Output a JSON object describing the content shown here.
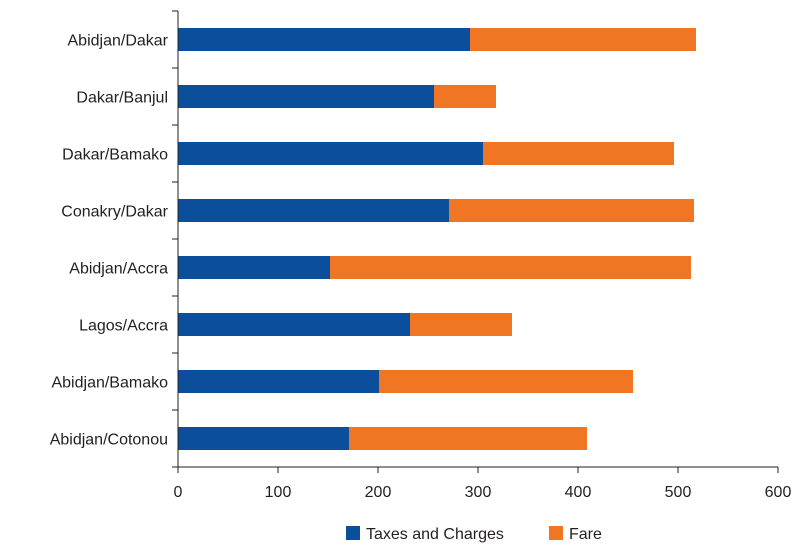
{
  "chart_data": {
    "type": "bar",
    "orientation": "horizontal",
    "stacked": true,
    "categories": [
      "Abidjan/Dakar",
      "Dakar/Banjul",
      "Dakar/Bamako",
      "Conakry/Dakar",
      "Abidjan/Accra",
      "Lagos/Accra",
      "Abidjan/Bamako",
      "Abidjan/Cotonou"
    ],
    "series": [
      {
        "name": "Taxes and Charges",
        "color": "#0b4f9c",
        "values": [
          292,
          256,
          305,
          271,
          152,
          232,
          201,
          171
        ]
      },
      {
        "name": "Fare",
        "color": "#f07623",
        "values": [
          226,
          62,
          191,
          245,
          361,
          102,
          254,
          238
        ]
      }
    ],
    "xlim": [
      0,
      600
    ],
    "xticks": [
      "0",
      "100",
      "200",
      "300",
      "400",
      "500",
      "600"
    ],
    "title": "",
    "xlabel": "",
    "ylabel": "",
    "grid": false,
    "legend": "bottom"
  }
}
